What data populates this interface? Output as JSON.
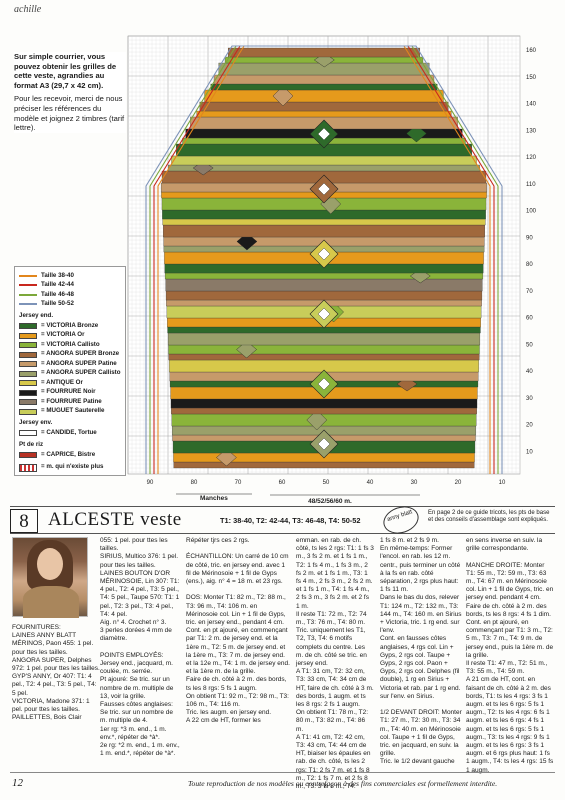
{
  "header": {
    "brand": "achille"
  },
  "courrier": {
    "bold": "Sur simple courrier, vous pouvez obtenir les grilles de cette veste, agrandies au format A3 (29,7 x 42 cm).",
    "text": "Pour les recevoir, merci de nous préciser les références du modèle et joignez 2 timbres (tarif lettre)."
  },
  "legend": {
    "sizes": [
      {
        "label": "Taille 38-40",
        "color": "#e2861c"
      },
      {
        "label": "Taille 42-44",
        "color": "#c8281e"
      },
      {
        "label": "Taille 46-48",
        "color": "#7ca83a"
      },
      {
        "label": "Taille 50-52",
        "color": "#7d93b8"
      }
    ],
    "jersey_title": "Jersey end.",
    "yarns": [
      {
        "label": "VICTORIA Bronze",
        "color": "#2e6a2a"
      },
      {
        "label": "VICTORIA Or",
        "color": "#e59a1c"
      },
      {
        "label": "VICTORIA Callisto",
        "color": "#8ab43a"
      },
      {
        "label": "ANGORA SUPER Bronze",
        "color": "#a0683c"
      },
      {
        "label": "ANGORA SUPER Patine",
        "color": "#c69a6a"
      },
      {
        "label": "ANGORA SUPER Callisto",
        "color": "#9aa06a"
      },
      {
        "label": "ANTIQUE Or",
        "color": "#d7c84a"
      },
      {
        "label": "FOURRURE Noir",
        "color": "#1a1a1a"
      },
      {
        "label": "FOURRURE Patine",
        "color": "#8a7a68"
      },
      {
        "label": "MUGUET Sauterelle",
        "color": "#c8cd5a"
      }
    ],
    "env_title": "Jersey env.",
    "env": [
      {
        "label": "= CANDIDE, Tortue",
        "color": "#ffffff"
      }
    ],
    "riz_title": "Pt de riz",
    "riz": [
      {
        "label": "= CAPRICE, Bistre",
        "color": "#b73224"
      }
    ],
    "note": "= m. qui n'existe plus"
  },
  "chart_data": {
    "type": "knitting-grid",
    "y_ticks": [
      "160",
      "150",
      "140",
      "130",
      "120",
      "110",
      "100",
      "90",
      "80",
      "70",
      "60",
      "50",
      "40",
      "30",
      "20",
      "10"
    ],
    "x_ticks": [
      "90",
      "80",
      "70",
      "60",
      "50",
      "40",
      "30",
      "20",
      "10"
    ],
    "label_manches": "Manches",
    "label_width": "48/52/56/60 m."
  },
  "article": {
    "number": "8",
    "title": "ALCESTE veste",
    "sizes": "T1: 38-40, T2: 42-44, T3: 46-48, T4: 50-52",
    "logo": "anny blatt",
    "refnote": "En page 2 de ce guide tricots, les pts de base et des conseils d'assemblage sont expliqués."
  },
  "columns": {
    "c1": "FOURNITURES:\nLAINES ANNY BLATT MÉRINOS, Paon 455: 1 pel. pour ttes les tailles.\nANGORA SUPER, Delphes 972: 1 pel. pour ttes les tailles.\nGYP'S ANNY, Or 407: T1: 4 pel., T2: 4 pel., T3: 5 pel., T4: 5 pel.\nVICTORIA, Madone 371: 1 pel. pour ttes les tailles.\nPAILLETTES, Bois Clair",
    "c2": "055: 1 pel. pour ttes les tailles.\nSIRIUS, Multico 376: 1 pel. pour ttes les tailles.\nLAINES BOUTON D'OR MÉRINOSOIE, Lin 307: T1: 4 pel., T2: 4 pel., T3: 5 pel., T4: 5 pel., Taupe 570: T1: 1 pel., T2: 3 pel., T3: 4 pel., T4: 4 pel.\nAig. n° 4. Crochet n° 3.\n3 perles dorées 4 mm de diamètre.\n\nPOINTS EMPLOYÉS:\nJersey end., jacquard, m. coulée, m. serrée.\nPt ajouré: Se tric. sur un nombre de m. multiple de 13, voir la grille.\nFausses côtes anglaises: Se tric. sur un nombre de m. multiple de 4.\n1er rg: *3 m. end., 1 m. env.*, répéter de *à*.\n2e rg: *2 m. end., 1 m. env., 1 m. end.*, répéter de *à*.",
    "c3": "Répéter tjrs ces 2 rgs.\n\nÉCHANTILLON: Un carré de 10 cm de côté, tric. en jersey end. avec 1 fil de Mérinosoie + 1 fil de Gyps (ens.), aig. n° 4 = 18 m. et 23 rgs.\n\nDOS: Monter T1: 82 m., T2: 88 m., T3: 96 m., T4: 106 m. en Mérinosoie col. Lin + 1 fil de Gyps, tric. en jersey end., pendant 4 cm.\nCont. en pt ajouré, en commençant par T1: 2 m. de jersey end. et la 1ère m., T2: 5 m. de jersey end. et la 1ère m., T3: 7 m. de jersey end. et la 12e m., T4: 1 m. de jersey end. et la 1ère m. de la grille.\nFaire de ch. côté à 2 m. des bords, ts les 8 rgs: 5 fs 1 augm.\nOn obtient T1: 92 m., T2: 98 m., T3: 106 m., T4: 116 m.\nTric. les augm. en jersey end.\nA 22 cm de HT, former les",
    "c4": "emman. en rab. de ch. côté, ts les 2 rgs: T1: 1 fs 3 m., 3 fs 2 m. et 1 fs 1 m., T2: 1 fs 4 m., 1 fs 3 m., 2 fs 2 m. et 1 fs 1 m., T3: 1 fs 4 m., 2 fs 3 m., 2 fs 2 m. et 1 fs 1 m., T4: 1 fs 4 m., 2 fs 3 m., 3 fs 2 m. et 2 fs 1 m.\nIl reste T1: 72 m., T2: 74 m., T3: 76 m., T4: 80 m. Tric. uniquement les T1, T2, T3, T4: 6 motifs complets du centre. Les m. de ch. côté se tric. en jersey end.\nA T1: 31 cm, T2: 32 cm, T3: 33 cm, T4: 34 cm de HT, faire de ch. côté à 3 m. des bords, 1 augm. et ts les 8 rgs: 2 fs 1 augm.\nOn obtient T1: 78 m., T2: 80 m., T3: 82 m., T4: 86 m.\nA T1: 41 cm, T2: 42 cm, T3: 43 cm, T4: 44 cm de HT, biaiser les épaules en rab. de ch. côté, ts les 2 rgs: T1: 2 fs 7 m. et 1 fs 8 m., T2: 1 fs 7 m. et 2 fs 8 m., T3: 3 fs 8 m., T4:",
    "c5": "1 fs 8 m. et 2 fs 9 m.\nEn même-temps: Former l'encol. en rab. les 12 m. centr., puis terminer un côté à la fs en rab. côté séparation, 2 rgs plus haut: 1 fs 11 m.\nDans le bas du dos, relever T1: 124 m., T2: 132 m., T3: 144 m., T4: 160 m. en Sirius + Victoria, tric. 1 rg end. sur l'env.\nCont. en fausses côtes anglaises, 4 rgs col. Lin + Gyps, 2 rgs col. Taupe + Gyps, 2 rgs col. Paon + Gyps, 2 rgs col. Delphes (fil double), 1 rg en Sirius + Victoria et rab. par 1 rg end. sur l'env. en Sirius.\n\n1/2 DEVANT DROIT: Monter T1: 27 m., T2: 30 m., T3: 34 m., T4: 40 m. en Mérinosoie col. Taupe + 1 fil de Gyps, tric. en jacquard, en suiv. la grille.\nTric. le 1/2 devant gauche",
    "c6": "en sens inverse en suiv. la grille correspondante.\n\nMANCHE DROITE: Monter T1: 55 m., T2: 59 m., T3: 63 m., T4: 67 m. en Mérinosoie col. Lin + 1 fil de Gyps, tric. en jersey end. pendant 4 cm.\nFaire de ch. côté à 2 m. des bords, ts les 8 rgs: 4 fs 1 dim.\nCont. en pt ajouré, en commençant par T1: 3 m., T2: 5 m., T3: 7 m., T4: 9 m. de jersey end., puis la 1ère m. de la grille.\nIl reste T1: 47 m., T2: 51 m., T3: 55 m., T4: 59 m.\nA 21 cm de HT, cont. en faisant de ch. côté à 2 m. des bords, T1: ts les 4 rgs: 3 fs 1 augm. et ts les 6 rgs: 5 fs 1 augm., T2: ts les 4 rgs: 6 fs 1 augm. et ts les 6 rgs: 4 fs 1 augm. et ts les 6 rgs: 5 fs 1 augm., T3: ts les 4 rgs: 9 fs 1 augm. et ts les 6 rgs: 3 fs 1 augm. et 6 rgs plus haut: 1 fs 1 augm., T4: ts les 4 rgs: 15 fs 1 augm."
  },
  "footer": {
    "page": "12",
    "copyright": "Toute reproduction de nos modèles ou contrefaçon à des fins commerciales est formellement interdite."
  }
}
